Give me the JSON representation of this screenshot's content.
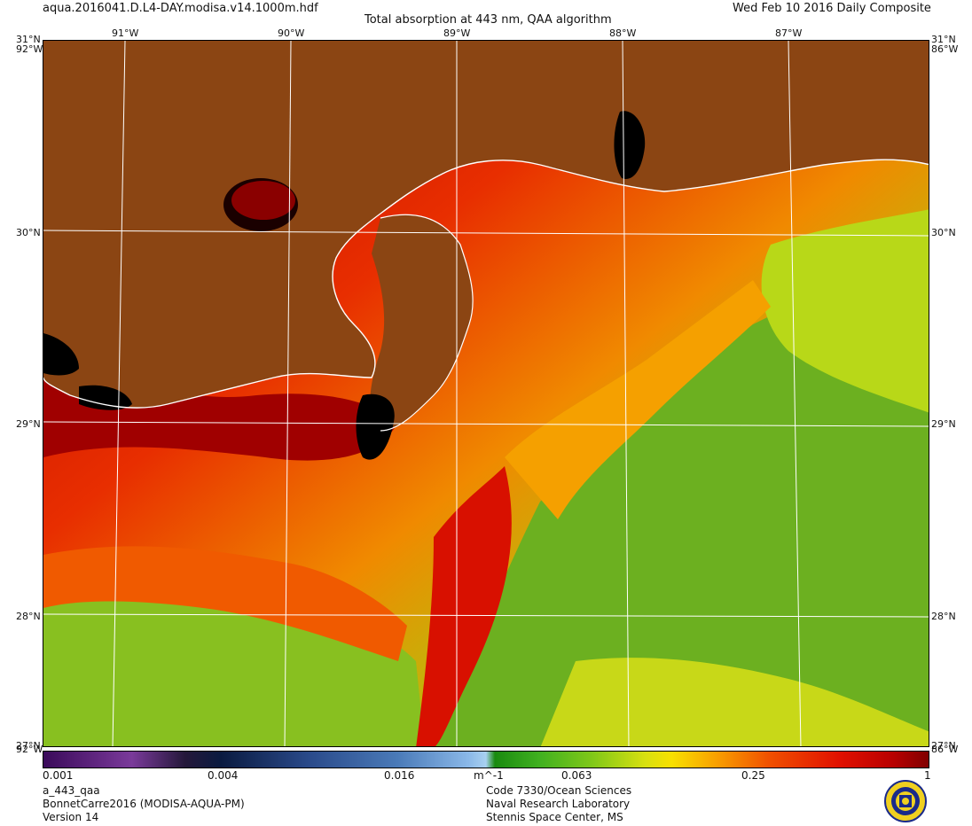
{
  "header": {
    "filename": "aqua.2016041.D.L4-DAY.modisa.v14.1000m.hdf",
    "title": "Total absorption at 443 nm, QAA algorithm",
    "date": "Wed Feb 10 2016 Daily Composite"
  },
  "map": {
    "lon_labels": [
      "91°W",
      "90°W",
      "89°W",
      "88°W",
      "87°W"
    ],
    "lat_labels": [
      "30°N",
      "29°N",
      "28°N"
    ],
    "corner_labels": {
      "top_left_lat": "31°N",
      "top_right_lat": "31°N",
      "top_left_lon": "92°W",
      "top_right_lon": "86°W",
      "bottom_left_lon": "92°W",
      "bottom_right_lon": "86°W",
      "bottom_left_lat": "27°N",
      "bottom_right_lat": "27°N"
    },
    "colors": {
      "land": "#8b4513",
      "coastline": "#ffffff",
      "no_data": "#000000",
      "grid": "#ffffff"
    }
  },
  "colorbar": {
    "ticks": [
      "0.001",
      "0.004",
      "0.016",
      "0.063",
      "0.25",
      "1"
    ],
    "units": "m^-1",
    "scale": "log",
    "range": [
      0.001,
      1
    ]
  },
  "footer": {
    "left": [
      "a_443_qaa",
      "BonnetCarre2016 (MODISA-AQUA-PM)",
      "Version 14"
    ],
    "right": [
      "Code 7330/Ocean Sciences",
      "Naval Research Laboratory",
      "Stennis Space Center, MS"
    ],
    "logo": "nrl-seal-icon"
  }
}
